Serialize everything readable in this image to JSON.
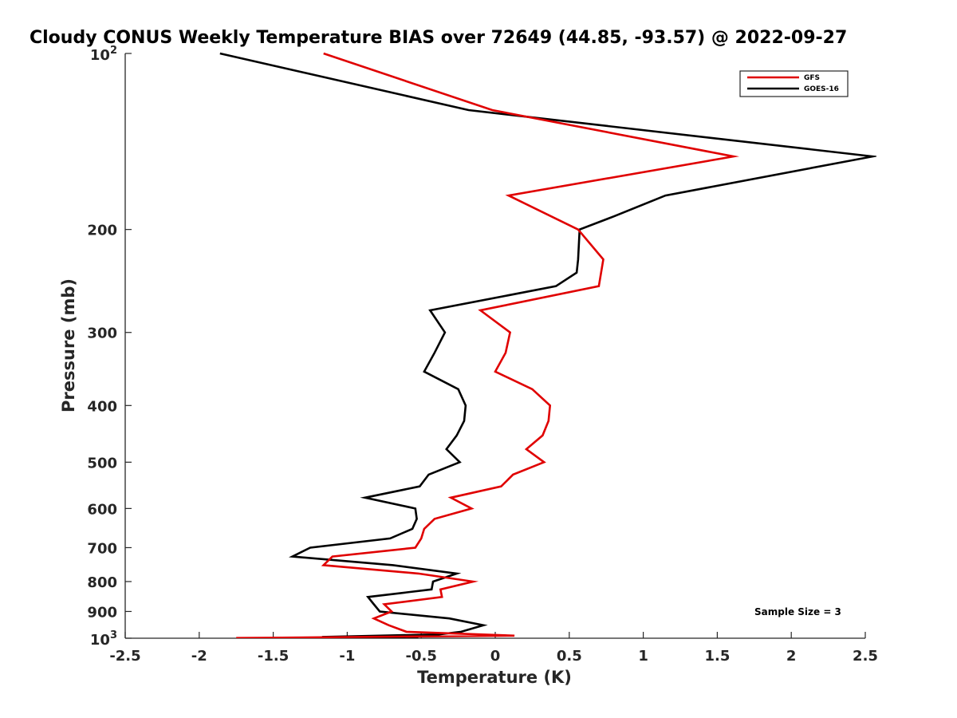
{
  "chart_data": {
    "type": "line",
    "title": "Cloudy CONUS Weekly Temperature BIAS over 72649 (44.85, -93.57) @ 2022-09-27",
    "xlabel": "Temperature (K)",
    "ylabel": "Pressure (mb)",
    "xlim": [
      -2.5,
      2.5
    ],
    "ylim": [
      100,
      1000
    ],
    "y_scale": "log",
    "y_reversed": true,
    "grid": false,
    "legend_position": "top-right",
    "x_ticks": [
      -2.5,
      -2,
      -1.5,
      -1,
      -0.5,
      0,
      0.5,
      1,
      1.5,
      2,
      2.5
    ],
    "x_tick_labels": [
      "-2.5",
      "-2",
      "-1.5",
      "-1",
      "-0.5",
      "0",
      "0.5",
      "1",
      "1.5",
      "2",
      "2.5"
    ],
    "y_ticks": [
      200,
      300,
      400,
      500,
      600,
      700,
      800,
      900
    ],
    "y_tick_labels": [
      "200",
      "300",
      "400",
      "500",
      "600",
      "700",
      "800",
      "900"
    ],
    "y_top_label": {
      "base": "10",
      "exp": "2"
    },
    "y_bottom_label": {
      "base": "10",
      "exp": "3"
    },
    "annotation": "Sample Size = 3",
    "series": [
      {
        "name": "GFS",
        "color": "#e00000",
        "points": [
          [
            -1.16,
            100
          ],
          [
            -0.02,
            125
          ],
          [
            1.61,
            150
          ],
          [
            0.09,
            175
          ],
          [
            0.56,
            200
          ],
          [
            0.73,
            225
          ],
          [
            0.7,
            250
          ],
          [
            -0.1,
            275
          ],
          [
            0.1,
            300
          ],
          [
            0.07,
            325
          ],
          [
            0.0,
            350
          ],
          [
            0.25,
            375
          ],
          [
            0.37,
            400
          ],
          [
            0.36,
            425
          ],
          [
            0.32,
            450
          ],
          [
            0.21,
            475
          ],
          [
            0.33,
            500
          ],
          [
            0.12,
            525
          ],
          [
            0.04,
            550
          ],
          [
            -0.3,
            575
          ],
          [
            -0.16,
            600
          ],
          [
            -0.41,
            625
          ],
          [
            -0.48,
            650
          ],
          [
            -0.5,
            675
          ],
          [
            -0.54,
            700
          ],
          [
            -1.1,
            725
          ],
          [
            -1.16,
            750
          ],
          [
            -0.52,
            775
          ],
          [
            -0.15,
            800
          ],
          [
            -0.37,
            825
          ],
          [
            -0.36,
            850
          ],
          [
            -0.75,
            875
          ],
          [
            -0.7,
            900
          ],
          [
            -0.82,
            925
          ],
          [
            -0.72,
            950
          ],
          [
            -0.6,
            975
          ],
          [
            0.13,
            990
          ],
          [
            -0.95,
            995
          ],
          [
            -1.52,
            998
          ],
          [
            -1.75,
            999
          ],
          [
            -1.66,
            1000
          ]
        ]
      },
      {
        "name": "GOES-16",
        "color": "#000000",
        "points": [
          [
            -1.86,
            100
          ],
          [
            -0.18,
            125
          ],
          [
            2.55,
            150
          ],
          [
            1.15,
            175
          ],
          [
            0.8,
            190
          ],
          [
            0.57,
            200
          ],
          [
            0.56,
            225
          ],
          [
            0.55,
            237
          ],
          [
            0.41,
            250
          ],
          [
            -0.44,
            275
          ],
          [
            -0.34,
            300
          ],
          [
            -0.41,
            325
          ],
          [
            -0.48,
            350
          ],
          [
            -0.25,
            375
          ],
          [
            -0.2,
            400
          ],
          [
            -0.21,
            425
          ],
          [
            -0.26,
            450
          ],
          [
            -0.33,
            475
          ],
          [
            -0.24,
            500
          ],
          [
            -0.45,
            525
          ],
          [
            -0.51,
            550
          ],
          [
            -0.88,
            575
          ],
          [
            -0.54,
            600
          ],
          [
            -0.53,
            625
          ],
          [
            -0.56,
            650
          ],
          [
            -0.71,
            675
          ],
          [
            -1.25,
            700
          ],
          [
            -1.37,
            725
          ],
          [
            -0.69,
            750
          ],
          [
            -0.26,
            775
          ],
          [
            -0.42,
            800
          ],
          [
            -0.43,
            825
          ],
          [
            -0.86,
            850
          ],
          [
            -0.82,
            875
          ],
          [
            -0.78,
            900
          ],
          [
            -0.31,
            925
          ],
          [
            -0.08,
            950
          ],
          [
            -0.23,
            975
          ],
          [
            -0.38,
            985
          ],
          [
            -1.17,
            995
          ],
          [
            -0.52,
            1000
          ]
        ]
      }
    ]
  }
}
